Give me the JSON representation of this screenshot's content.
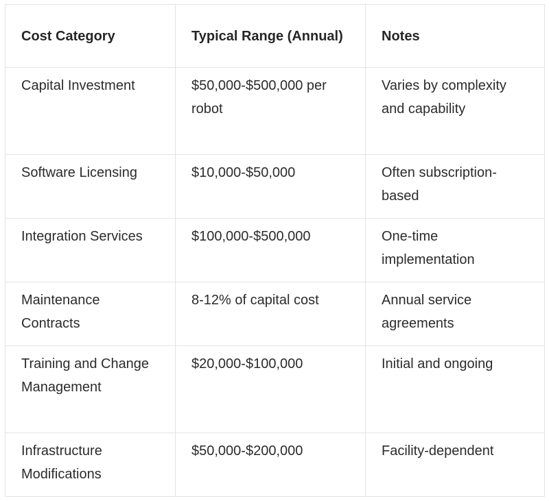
{
  "table": {
    "headers": [
      "Cost Category",
      "Typical Range (Annual)",
      "Notes"
    ],
    "rows": [
      [
        "Capital Investment",
        "$50,000-$500,000 per robot",
        "Varies by complexity and capability"
      ],
      [
        "Software Licensing",
        "$10,000-$50,000",
        "Often subscription-based"
      ],
      [
        "Integration Services",
        "$100,000-$500,000",
        "One-time implementation"
      ],
      [
        "Maintenance Contracts",
        "8-12% of capital cost",
        "Annual service agreements"
      ],
      [
        "Training and Change Management",
        "$20,000-$100,000",
        "Initial and ongoing"
      ],
      [
        "Infrastructure Modifications",
        "$50,000-$200,000",
        "Facility-dependent"
      ]
    ]
  }
}
